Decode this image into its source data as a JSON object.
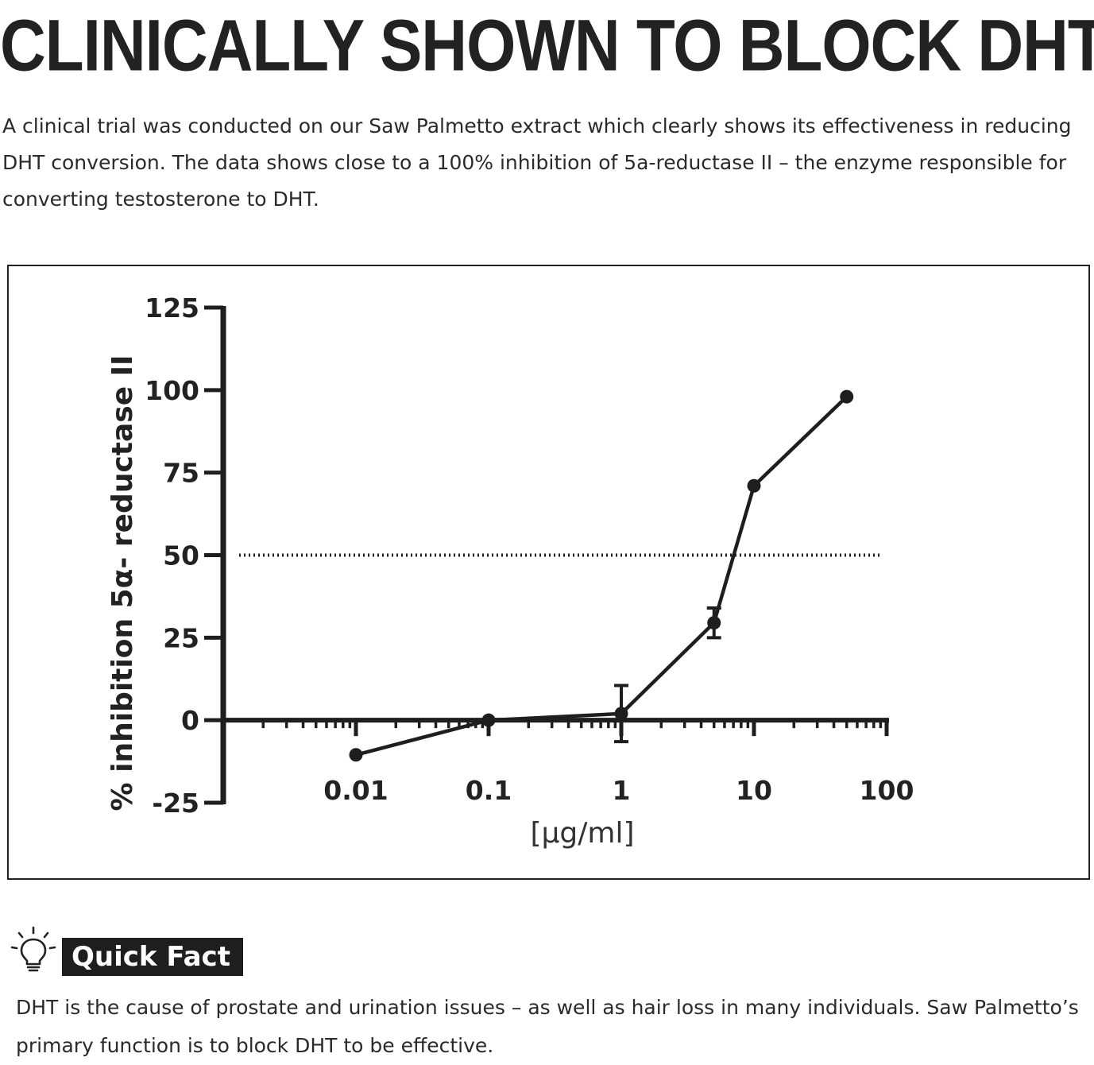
{
  "headline": "CLINICALLY SHOWN TO BLOCK DHT",
  "intro": "A clinical trial was conducted on our Saw Palmetto extract which clearly shows its effectiveness in reducing DHT conversion. The data shows close to a 100% inhibition of 5a-reductase II – the enzyme responsible for converting testosterone to DHT.",
  "quick_fact": {
    "label": "Quick Fact",
    "icon": "lightbulb-icon",
    "text": "DHT is the cause of prostate and urination issues – as well as hair loss in many individuals. Saw Palmetto’s primary function is to block DHT to be effective."
  },
  "chart_data": {
    "type": "line",
    "xlabel": "[µg/ml]",
    "ylabel": "% inhibition 5α- reductase II",
    "xscale": "log",
    "xlim": [
      0.001,
      100
    ],
    "ylim": [
      -25,
      125
    ],
    "xticks": [
      "0.01",
      "0.1",
      "1",
      "10",
      "100"
    ],
    "yticks": [
      "125",
      "100",
      "75",
      "50",
      "25",
      "0",
      "-25"
    ],
    "reference_line": {
      "y": 50,
      "style": "dotted"
    },
    "grid": false,
    "legend": "none",
    "series": [
      {
        "x": [
          0.01,
          0.1,
          1,
          5,
          10,
          50
        ],
        "y": [
          -10.5,
          0,
          2,
          29.5,
          71,
          98
        ],
        "error": [
          0,
          0,
          8.5,
          4.5,
          0,
          0
        ]
      }
    ]
  }
}
